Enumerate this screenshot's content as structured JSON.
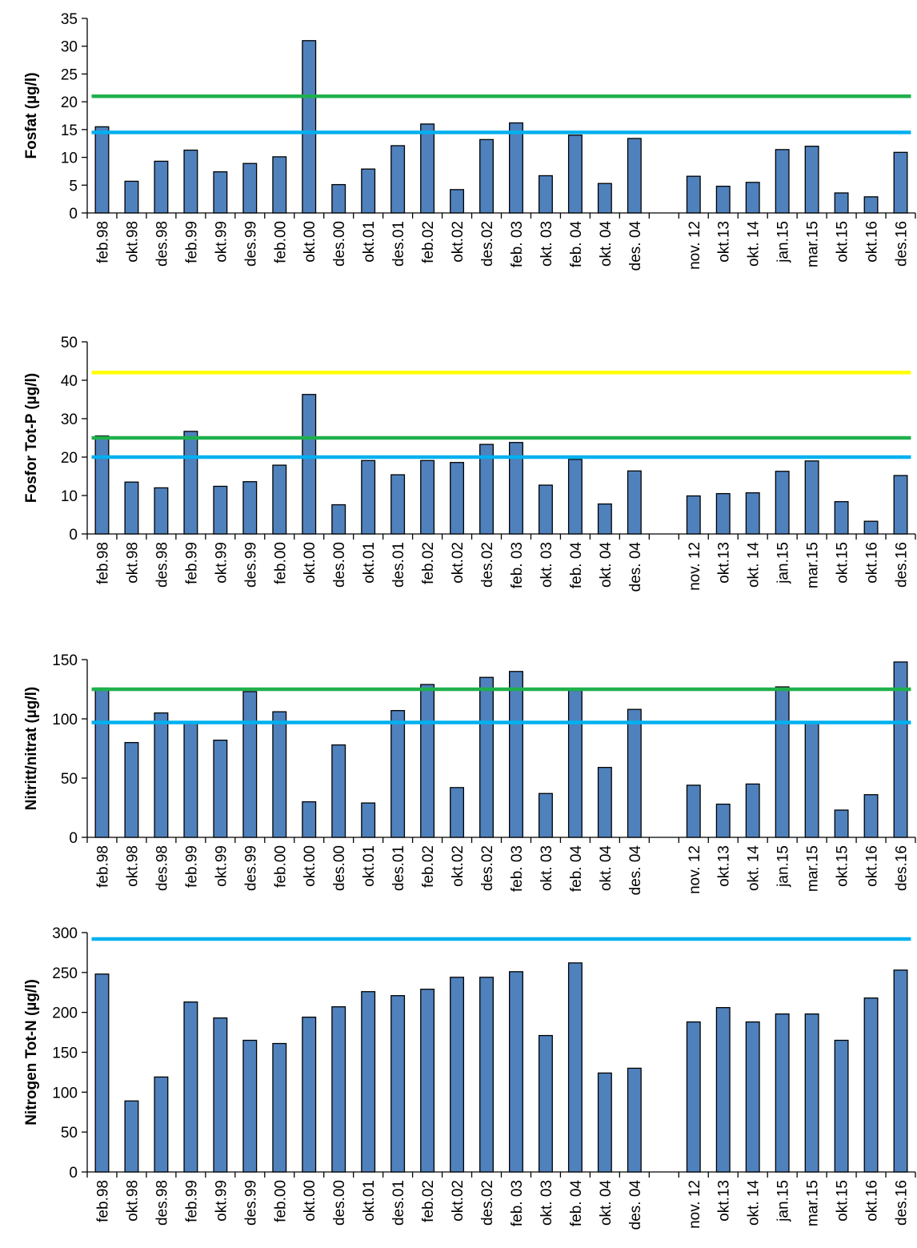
{
  "colors": {
    "bar_fill": "#4f81bd",
    "bar_stroke": "#000000",
    "axis": "#000000",
    "green": "#1fb04d",
    "blue": "#00b0f0",
    "yellow": "#ffff00"
  },
  "chart_data": [
    {
      "type": "bar",
      "ylabel": "Fosfat (µg/l)",
      "ylim": [
        0,
        35
      ],
      "yticks": [
        0,
        5,
        10,
        15,
        20,
        25,
        30,
        35
      ],
      "categories": [
        "feb.98",
        "okt.98",
        "des.98",
        "feb.99",
        "okt.99",
        "des.99",
        "feb.00",
        "okt.00",
        "des.00",
        "okt.01",
        "des.01",
        "feb.02",
        "okt.02",
        "des.02",
        "feb. 03",
        "okt. 03",
        "feb. 04",
        "okt. 04",
        "des. 04",
        "",
        "nov. 12",
        "okt.13",
        "okt. 14",
        "jan.15",
        "mar.15",
        "okt.15",
        "okt.16",
        "des.16"
      ],
      "values": [
        15.5,
        5.7,
        9.3,
        11.3,
        7.4,
        8.9,
        10.1,
        31,
        5.1,
        7.9,
        12.1,
        16,
        4.2,
        13.2,
        16.2,
        6.7,
        14,
        5.3,
        13.4,
        null,
        6.6,
        4.8,
        5.5,
        11.4,
        12,
        3.6,
        2.9,
        10.9
      ],
      "reference_lines": [
        {
          "color": "green",
          "value": 21
        },
        {
          "color": "blue",
          "value": 14.5
        }
      ]
    },
    {
      "type": "bar",
      "ylabel": "Fosfor Tot-P (µg/l)",
      "ylim": [
        0,
        50
      ],
      "yticks": [
        0,
        10,
        20,
        30,
        40,
        50
      ],
      "categories": [
        "feb.98",
        "okt.98",
        "des.98",
        "feb.99",
        "okt.99",
        "des.99",
        "feb.00",
        "okt.00",
        "des.00",
        "okt.01",
        "des.01",
        "feb.02",
        "okt.02",
        "des.02",
        "feb. 03",
        "okt. 03",
        "feb. 04",
        "okt. 04",
        "des. 04",
        "",
        "nov. 12",
        "okt.13",
        "okt. 14",
        "jan.15",
        "mar.15",
        "okt.15",
        "okt.16",
        "des.16"
      ],
      "values": [
        25.5,
        13.5,
        12,
        26.7,
        12.4,
        13.6,
        17.9,
        36.3,
        7.6,
        19.1,
        15.4,
        19.1,
        18.6,
        23.3,
        23.8,
        12.7,
        19.4,
        7.8,
        16.4,
        null,
        9.9,
        10.5,
        10.7,
        16.3,
        19,
        8.4,
        3.3,
        15.2
      ],
      "reference_lines": [
        {
          "color": "yellow",
          "value": 42
        },
        {
          "color": "green",
          "value": 25
        },
        {
          "color": "blue",
          "value": 20
        }
      ]
    },
    {
      "type": "bar",
      "ylabel": "Nitritt/nitrat (µg/l)",
      "ylim": [
        0,
        150
      ],
      "yticks": [
        0,
        50,
        100,
        150
      ],
      "categories": [
        "feb.98",
        "okt.98",
        "des.98",
        "feb.99",
        "okt.99",
        "des.99",
        "feb.00",
        "okt.00",
        "des.00",
        "okt.01",
        "des.01",
        "feb.02",
        "okt.02",
        "des.02",
        "feb. 03",
        "okt. 03",
        "feb. 04",
        "okt. 04",
        "des. 04",
        "",
        "nov. 12",
        "okt.13",
        "okt. 14",
        "jan.15",
        "mar.15",
        "okt.15",
        "okt.16",
        "des.16"
      ],
      "values": [
        126,
        80,
        105,
        97,
        82,
        123,
        106,
        30,
        78,
        29,
        107,
        129,
        42,
        135,
        140,
        37,
        124,
        59,
        108,
        null,
        44,
        28,
        45,
        127,
        97,
        23,
        36,
        148
      ],
      "reference_lines": [
        {
          "color": "green",
          "value": 125
        },
        {
          "color": "blue",
          "value": 97
        }
      ]
    },
    {
      "type": "bar",
      "ylabel": "Nitrogen Tot-N (µg/l)",
      "ylim": [
        0,
        300
      ],
      "yticks": [
        0,
        50,
        100,
        150,
        200,
        250,
        300
      ],
      "categories": [
        "feb.98",
        "okt.98",
        "des.98",
        "feb.99",
        "okt.99",
        "des.99",
        "feb.00",
        "okt.00",
        "des.00",
        "okt.01",
        "des.01",
        "feb.02",
        "okt.02",
        "des.02",
        "feb. 03",
        "okt. 03",
        "feb. 04",
        "okt. 04",
        "des. 04",
        "",
        "nov. 12",
        "okt.13",
        "okt. 14",
        "jan.15",
        "mar.15",
        "okt.15",
        "okt.16",
        "des.16"
      ],
      "values": [
        248,
        89,
        119,
        213,
        193,
        165,
        161,
        194,
        207,
        226,
        221,
        229,
        244,
        244,
        251,
        171,
        262,
        124,
        130,
        null,
        188,
        206,
        188,
        198,
        198,
        165,
        218,
        253
      ],
      "reference_lines": [
        {
          "color": "blue",
          "value": 292
        }
      ]
    }
  ]
}
